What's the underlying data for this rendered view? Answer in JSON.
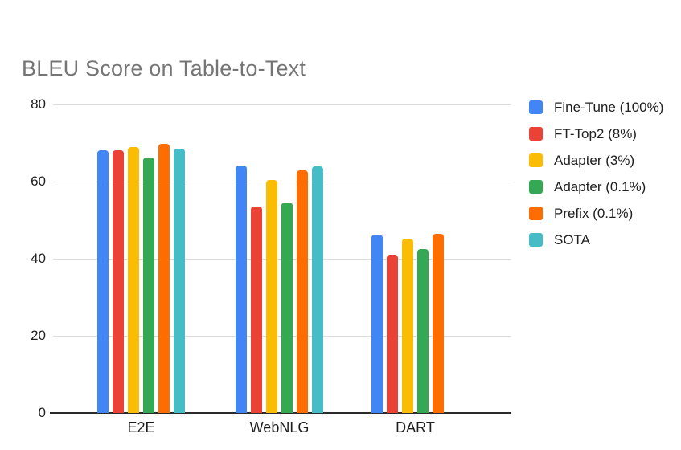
{
  "chart_data": {
    "type": "bar",
    "title": "BLEU Score on Table-to-Text",
    "categories": [
      "E2E",
      "WebNLG",
      "DART"
    ],
    "series": [
      {
        "name": "Fine-Tune (100%)",
        "color": "#4285F4",
        "values": [
          68.2,
          64.2,
          46.2
        ]
      },
      {
        "name": "FT-Top2 (8%)",
        "color": "#EA4335",
        "values": [
          68.1,
          53.6,
          41.0
        ]
      },
      {
        "name": "Adapter (3%)",
        "color": "#FBBC04",
        "values": [
          68.9,
          60.4,
          45.2
        ]
      },
      {
        "name": "Adapter (0.1%)",
        "color": "#34A853",
        "values": [
          66.3,
          54.5,
          42.4
        ]
      },
      {
        "name": "Prefix (0.1%)",
        "color": "#FF6D01",
        "values": [
          69.7,
          62.9,
          46.4
        ]
      },
      {
        "name": "SOTA",
        "color": "#46BDC6",
        "values": [
          68.6,
          63.9,
          null
        ]
      }
    ],
    "xlabel": "",
    "ylabel": "",
    "y_ticks": [
      0,
      20,
      40,
      60,
      80
    ],
    "ylim": [
      0,
      80
    ],
    "grid": true,
    "legend_position": "right",
    "title_color": "#757575",
    "axis_label_color": "#1f1f1f",
    "gridline_color": "#dcdcdc",
    "baseline_color": "#2b2b2b"
  }
}
